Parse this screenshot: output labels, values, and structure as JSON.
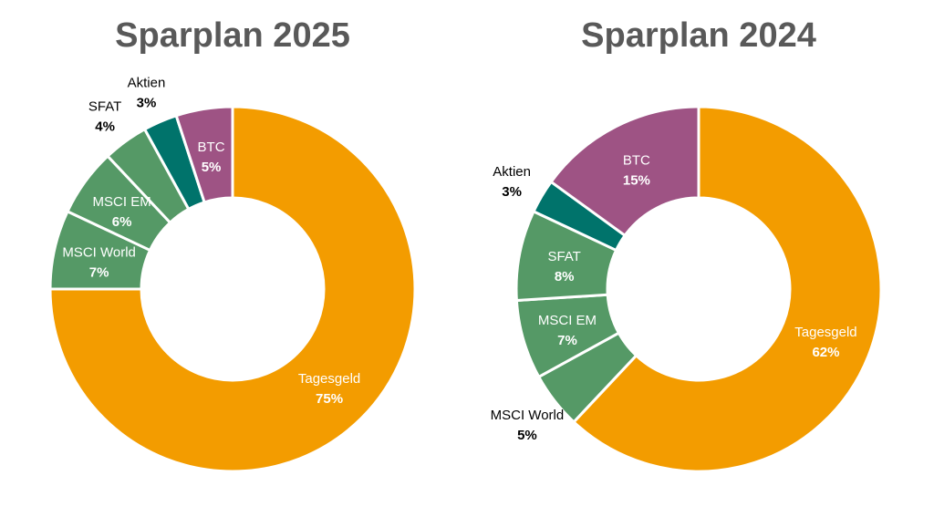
{
  "chart_data": [
    {
      "type": "pie",
      "subtype": "donut",
      "title": "Sparplan 2025",
      "categories": [
        "Tagesgeld",
        "MSCI World",
        "MSCI EM",
        "SFAT",
        "Aktien",
        "BTC"
      ],
      "values": [
        75,
        7,
        6,
        4,
        3,
        5
      ],
      "labels": [
        "75%",
        "7%",
        "6%",
        "4%",
        "3%",
        "5%"
      ],
      "label_outside": [
        false,
        false,
        false,
        true,
        true,
        false
      ],
      "colors": [
        "#F39C00",
        "#559966",
        "#559966",
        "#559966",
        "#00736B",
        "#9E5384"
      ]
    },
    {
      "type": "pie",
      "subtype": "donut",
      "title": "Sparplan 2024",
      "categories": [
        "Tagesgeld",
        "MSCI World",
        "MSCI EM",
        "SFAT",
        "Aktien",
        "BTC"
      ],
      "values": [
        62,
        5,
        7,
        8,
        3,
        15
      ],
      "labels": [
        "62%",
        "5%",
        "7%",
        "8%",
        "3%",
        "15%"
      ],
      "label_outside": [
        false,
        true,
        false,
        false,
        true,
        false
      ],
      "colors": [
        "#F39C00",
        "#559966",
        "#559966",
        "#559966",
        "#00736B",
        "#9E5384"
      ]
    }
  ]
}
